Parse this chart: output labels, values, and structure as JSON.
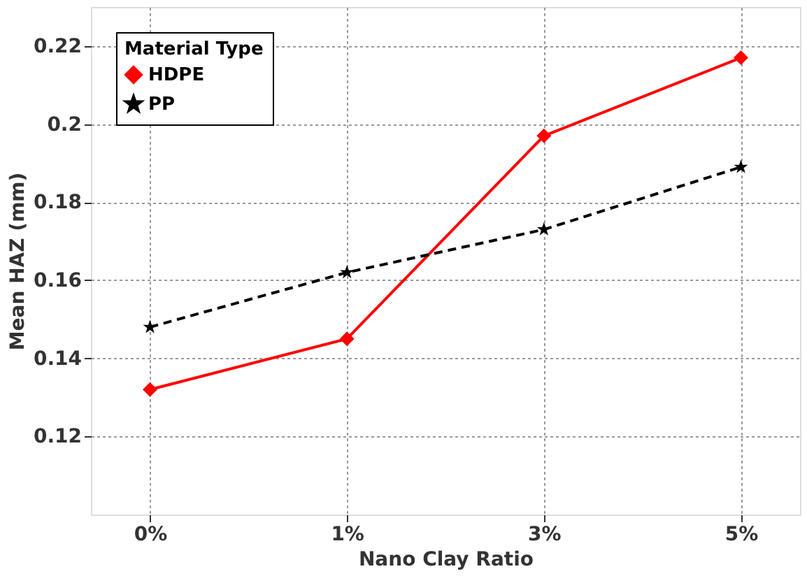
{
  "chart_data": {
    "type": "line",
    "xlabel": "Nano Clay Ratio",
    "ylabel": "Mean HAZ (mm)",
    "legend_title": "Material Type",
    "categories": [
      "0%",
      "1%",
      "3%",
      "5%"
    ],
    "series": [
      {
        "name": "HDPE",
        "color": "#ff0000",
        "values": [
          0.132,
          0.145,
          0.197,
          0.217
        ],
        "marker": "diamond",
        "line_style": "solid"
      },
      {
        "name": "PP",
        "color": "#000000",
        "values": [
          0.148,
          0.162,
          0.173,
          0.189
        ],
        "marker": "star",
        "line_style": "dashed"
      }
    ],
    "ylim": [
      0.1,
      0.23
    ],
    "yticks": [
      0.12,
      0.14,
      0.16,
      0.18,
      0.2,
      0.22
    ],
    "grid": true,
    "legend": "top left"
  }
}
